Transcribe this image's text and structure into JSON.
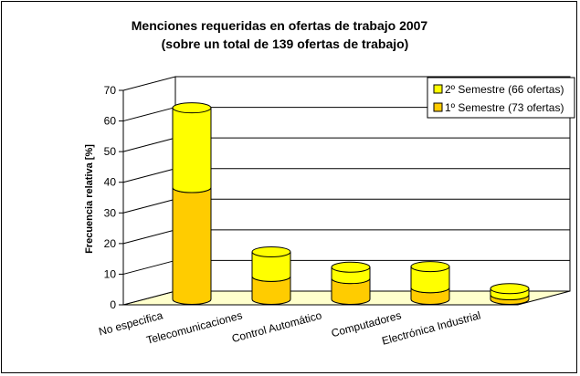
{
  "chart_data": {
    "type": "bar",
    "style": "3d-stacked-cylinder",
    "title": "Menciones requeridas en ofertas de trabajo 2007",
    "subtitle": "(sobre un total de 139 ofertas de trabajo)",
    "ylabel": "Frecuencia relativa [%]",
    "xlabel": "",
    "ylim": [
      0,
      70
    ],
    "yticks": [
      "0",
      "10",
      "20",
      "30",
      "40",
      "50",
      "60",
      "70"
    ],
    "grid": true,
    "legend_position": "top-right",
    "categories": [
      "No especifica",
      "Telecomunicaciones",
      "Control Automático",
      "Computadores",
      "Electrónica Industrial"
    ],
    "series": [
      {
        "name": "1º Semestre (73 ofertas)",
        "values": [
          36.5,
          7.5,
          6.8,
          3.8,
          1.5
        ],
        "color": "#FFCC00"
      },
      {
        "name": "2º Semestre (66 ofertas)",
        "values": [
          26.0,
          8.0,
          3.7,
          6.9,
          2.0
        ],
        "color": "#FFFF00"
      }
    ]
  }
}
